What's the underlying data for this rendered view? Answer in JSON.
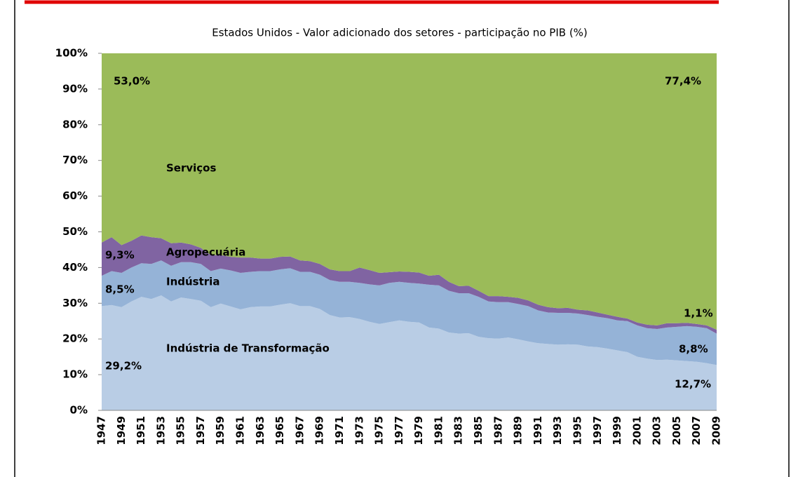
{
  "chart_data": {
    "type": "stacked_area",
    "title": "Estados Unidos - Valor adicionado dos setores - participação no PIB (%)",
    "categories": [
      "1947",
      null,
      "1949",
      null,
      "1951",
      null,
      "1953",
      null,
      "1955",
      null,
      "1957",
      null,
      "1959",
      null,
      "1961",
      null,
      "1963",
      null,
      "1965",
      null,
      "1967",
      null,
      "1969",
      null,
      "1971",
      null,
      "1973",
      null,
      "1975",
      null,
      "1977",
      null,
      "1979",
      null,
      "1981",
      null,
      "1983",
      null,
      "1985",
      null,
      "1987",
      null,
      "1989",
      null,
      "1991",
      null,
      "1993",
      null,
      "1995",
      null,
      "1997",
      null,
      "1999",
      null,
      "2001",
      null,
      "2003",
      null,
      "2005",
      null,
      "2007",
      null,
      "2009"
    ],
    "series": [
      {
        "name": "Indústria de Transformação",
        "color": "#b9cde5",
        "values": [
          29.2,
          29.5,
          28.9,
          30.5,
          31.8,
          31.2,
          32.2,
          30.5,
          31.6,
          31.2,
          30.7,
          28.9,
          29.9,
          29.1,
          28.3,
          28.9,
          29.1,
          29.1,
          29.6,
          30.0,
          29.2,
          29.2,
          28.4,
          26.7,
          26.0,
          26.1,
          25.6,
          24.8,
          24.2,
          24.7,
          25.2,
          24.8,
          24.6,
          23.2,
          22.9,
          21.8,
          21.5,
          21.6,
          20.6,
          20.2,
          20.1,
          20.4,
          19.9,
          19.3,
          18.8,
          18.6,
          18.4,
          18.5,
          18.4,
          17.9,
          17.7,
          17.3,
          16.8,
          16.3,
          15.0,
          14.5,
          14.1,
          14.2,
          14.0,
          13.8,
          13.6,
          13.2,
          12.7
        ],
        "value_labels": [
          "29,2%",
          null,
          null,
          null,
          null,
          null,
          null,
          null,
          null,
          null,
          null,
          null,
          null,
          null,
          null,
          null,
          null,
          null,
          null,
          null,
          null,
          null,
          null,
          null,
          null,
          null,
          null,
          null,
          null,
          null,
          null,
          null,
          null,
          null,
          null,
          null,
          null,
          null,
          null,
          null,
          null,
          null,
          null,
          null,
          null,
          null,
          null,
          null,
          null,
          null,
          null,
          null,
          null,
          null,
          null,
          null,
          null,
          null,
          null,
          null,
          null,
          null,
          "12,7%"
        ]
      },
      {
        "name": "Indústria",
        "color": "#95b3d7",
        "values": [
          8.5,
          9.5,
          9.6,
          9.5,
          9.4,
          9.8,
          9.8,
          10.0,
          9.9,
          10.3,
          10.3,
          10.1,
          9.8,
          10.1,
          10.2,
          9.9,
          9.9,
          9.9,
          9.9,
          9.8,
          9.6,
          9.6,
          9.6,
          9.8,
          10.0,
          9.9,
          10.1,
          10.5,
          10.8,
          11.0,
          10.8,
          10.9,
          10.9,
          12.0,
          12.1,
          11.7,
          11.3,
          11.2,
          11.2,
          10.3,
          10.2,
          9.9,
          9.9,
          9.9,
          9.2,
          8.8,
          8.9,
          8.8,
          8.7,
          8.8,
          8.5,
          8.5,
          8.4,
          8.7,
          8.8,
          8.5,
          8.7,
          9.0,
          9.4,
          9.8,
          9.8,
          9.8,
          8.8
        ],
        "value_labels": [
          "8,5%",
          null,
          null,
          null,
          null,
          null,
          null,
          null,
          null,
          null,
          null,
          null,
          null,
          null,
          null,
          null,
          null,
          null,
          null,
          null,
          null,
          null,
          null,
          null,
          null,
          null,
          null,
          null,
          null,
          null,
          null,
          null,
          null,
          null,
          null,
          null,
          null,
          null,
          null,
          null,
          null,
          null,
          null,
          null,
          null,
          null,
          null,
          null,
          null,
          null,
          null,
          null,
          null,
          null,
          null,
          null,
          null,
          null,
          null,
          null,
          null,
          null,
          "8,8%"
        ]
      },
      {
        "name": "Agropecuária",
        "color": "#8064a2",
        "values": [
          9.3,
          9.5,
          7.8,
          7.5,
          7.8,
          7.5,
          6.2,
          6.3,
          5.5,
          5.0,
          4.5,
          4.5,
          3.8,
          3.8,
          4.3,
          4.0,
          3.5,
          3.5,
          3.5,
          3.3,
          3.2,
          3.0,
          3.0,
          3.0,
          3.0,
          3.0,
          4.3,
          4.0,
          3.5,
          3.0,
          2.9,
          3.1,
          3.1,
          2.5,
          3.0,
          2.5,
          2.0,
          2.1,
          1.7,
          1.5,
          1.7,
          1.5,
          1.7,
          1.6,
          1.6,
          1.5,
          1.3,
          1.4,
          1.1,
          1.3,
          1.2,
          1.0,
          1.0,
          0.7,
          0.8,
          1.0,
          1.0,
          1.2,
          1.0,
          0.9,
          0.8,
          0.8,
          1.1
        ],
        "value_labels": [
          "9,3%",
          null,
          null,
          null,
          null,
          null,
          null,
          null,
          null,
          null,
          null,
          null,
          null,
          null,
          null,
          null,
          null,
          null,
          null,
          null,
          null,
          null,
          null,
          null,
          null,
          null,
          null,
          null,
          null,
          null,
          null,
          null,
          null,
          null,
          null,
          null,
          null,
          null,
          null,
          null,
          null,
          null,
          null,
          null,
          null,
          null,
          null,
          null,
          null,
          null,
          null,
          null,
          null,
          null,
          null,
          null,
          null,
          null,
          null,
          null,
          null,
          null,
          "1,1%"
        ]
      },
      {
        "name": "Serviços",
        "color": "#9bbb59",
        "values": [
          53.0,
          51.5,
          53.7,
          52.5,
          51.0,
          51.5,
          51.8,
          53.2,
          53.0,
          53.5,
          54.5,
          56.5,
          56.5,
          57.0,
          57.2,
          57.2,
          57.5,
          57.5,
          57.0,
          56.9,
          58.0,
          58.2,
          59.0,
          60.5,
          61.0,
          61.0,
          60.0,
          60.7,
          61.5,
          61.3,
          61.1,
          61.2,
          61.4,
          62.3,
          62.0,
          64.0,
          65.2,
          65.1,
          66.5,
          68.0,
          68.0,
          68.2,
          68.5,
          69.2,
          70.4,
          71.1,
          71.4,
          71.3,
          71.8,
          72.0,
          72.6,
          73.2,
          73.8,
          74.3,
          75.4,
          76.0,
          76.2,
          75.6,
          75.6,
          75.5,
          75.8,
          76.2,
          77.4
        ],
        "value_labels": [
          "53,0%",
          null,
          null,
          null,
          null,
          null,
          null,
          null,
          null,
          null,
          null,
          null,
          null,
          null,
          null,
          null,
          null,
          null,
          null,
          null,
          null,
          null,
          null,
          null,
          null,
          null,
          null,
          null,
          null,
          null,
          null,
          null,
          null,
          null,
          null,
          null,
          null,
          null,
          null,
          null,
          null,
          null,
          null,
          null,
          null,
          null,
          null,
          null,
          null,
          null,
          null,
          null,
          null,
          null,
          null,
          null,
          null,
          null,
          null,
          null,
          null,
          null,
          "77,4%"
        ]
      }
    ],
    "ylim": [
      0,
      100
    ],
    "yticks": [
      {
        "value": 0,
        "label": "0%"
      },
      {
        "value": 10,
        "label": "10%"
      },
      {
        "value": 20,
        "label": "20%"
      },
      {
        "value": 30,
        "label": "30%"
      },
      {
        "value": 40,
        "label": "40%"
      },
      {
        "value": 50,
        "label": "50%"
      },
      {
        "value": 60,
        "label": "60%"
      },
      {
        "value": 70,
        "label": "70%"
      },
      {
        "value": 80,
        "label": "80%"
      },
      {
        "value": 90,
        "label": "90%"
      },
      {
        "value": 100,
        "label": "100%"
      }
    ]
  }
}
